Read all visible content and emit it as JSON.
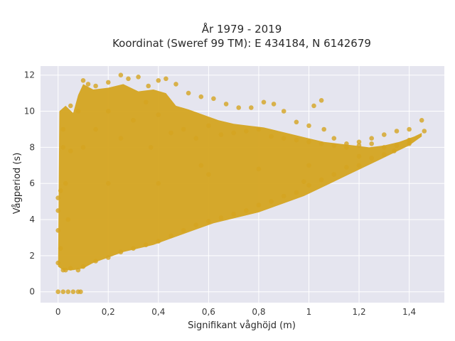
{
  "chart_data": {
    "type": "scatter",
    "title_line1": "År 1979 - 2019",
    "title_line2": "Koordinat (Sweref 99 TM): E 434184, N 6142679",
    "xlabel": "Signifikant våghöjd (m)",
    "ylabel": "Vågperiod (s)",
    "xlim": [
      -0.07,
      1.54
    ],
    "ylim": [
      -0.6,
      12.5
    ],
    "x_ticks": [
      0,
      0.2,
      0.4,
      0.6,
      0.8,
      1.0,
      1.2,
      1.4
    ],
    "x_tick_labels": [
      "0",
      "0,2",
      "0,4",
      "0,6",
      "0,8",
      "1",
      "1,2",
      "1,4"
    ],
    "y_ticks": [
      0,
      2,
      4,
      6,
      8,
      10,
      12
    ],
    "y_tick_labels": [
      "0",
      "2",
      "4",
      "6",
      "8",
      "10",
      "12"
    ],
    "grid": true,
    "marker_color": "#D4A420",
    "background_color": "#E5E5EF",
    "series": [
      {
        "points": [
          [
            0.0,
            0.0
          ],
          [
            0.02,
            0.0
          ],
          [
            0.04,
            0.0
          ],
          [
            0.06,
            0.0
          ],
          [
            0.08,
            0.0
          ],
          [
            0.09,
            0.0
          ],
          [
            0.0,
            1.6
          ],
          [
            0.0,
            3.4
          ],
          [
            0.01,
            5.6
          ],
          [
            0.02,
            9.0
          ],
          [
            0.03,
            1.2
          ],
          [
            0.05,
            7.8
          ],
          [
            0.05,
            10.3
          ],
          [
            0.08,
            10.0
          ],
          [
            0.1,
            11.7
          ],
          [
            0.12,
            11.5
          ],
          [
            0.15,
            11.4
          ],
          [
            0.2,
            11.6
          ],
          [
            0.25,
            12.0
          ],
          [
            0.28,
            11.8
          ],
          [
            0.32,
            11.9
          ],
          [
            0.36,
            11.4
          ],
          [
            0.4,
            11.7
          ],
          [
            0.43,
            11.8
          ],
          [
            0.47,
            11.5
          ],
          [
            0.52,
            11.0
          ],
          [
            0.57,
            10.8
          ],
          [
            0.62,
            10.7
          ],
          [
            0.67,
            10.4
          ],
          [
            0.72,
            10.2
          ],
          [
            0.77,
            10.2
          ],
          [
            0.82,
            10.5
          ],
          [
            0.86,
            10.4
          ],
          [
            0.9,
            10.0
          ],
          [
            0.95,
            9.4
          ],
          [
            1.0,
            9.2
          ],
          [
            1.02,
            10.3
          ],
          [
            1.05,
            10.6
          ],
          [
            1.06,
            9.0
          ],
          [
            1.1,
            8.5
          ],
          [
            1.15,
            8.2
          ],
          [
            1.2,
            8.3
          ],
          [
            1.25,
            8.5
          ],
          [
            1.3,
            8.7
          ],
          [
            1.35,
            8.9
          ],
          [
            1.4,
            9.0
          ],
          [
            1.45,
            9.5
          ],
          [
            1.46,
            8.9
          ],
          [
            1.4,
            8.2
          ],
          [
            1.3,
            7.6
          ],
          [
            1.25,
            7.4
          ],
          [
            1.2,
            7.0
          ],
          [
            1.15,
            6.9
          ],
          [
            1.1,
            6.5
          ],
          [
            1.05,
            6.2
          ],
          [
            1.0,
            5.9
          ],
          [
            0.95,
            5.5
          ],
          [
            0.98,
            6.1
          ],
          [
            0.9,
            5.3
          ],
          [
            0.85,
            5.0
          ],
          [
            0.8,
            4.8
          ],
          [
            0.75,
            4.5
          ],
          [
            0.7,
            4.3
          ],
          [
            0.65,
            4.1
          ],
          [
            0.6,
            3.9
          ],
          [
            0.55,
            3.7
          ],
          [
            0.5,
            3.4
          ],
          [
            0.45,
            3.1
          ],
          [
            0.4,
            2.8
          ],
          [
            0.35,
            2.6
          ],
          [
            0.3,
            2.4
          ],
          [
            0.25,
            2.2
          ],
          [
            0.2,
            1.9
          ],
          [
            0.15,
            1.7
          ],
          [
            0.1,
            1.4
          ],
          [
            0.08,
            1.2
          ],
          [
            0.05,
            1.3
          ],
          [
            0.02,
            1.2
          ],
          [
            0.0,
            5.2
          ],
          [
            0.0,
            4.5
          ],
          [
            0.01,
            2.4
          ],
          [
            0.02,
            8.0
          ],
          [
            0.03,
            6.0
          ],
          [
            0.04,
            4.0
          ],
          [
            0.1,
            8.0
          ],
          [
            0.15,
            9.0
          ],
          [
            0.2,
            10.0
          ],
          [
            0.25,
            8.5
          ],
          [
            0.3,
            9.5
          ],
          [
            0.35,
            10.5
          ],
          [
            0.4,
            9.8
          ],
          [
            0.45,
            8.8
          ],
          [
            0.5,
            9.0
          ],
          [
            0.55,
            8.5
          ],
          [
            0.6,
            9.2
          ],
          [
            0.65,
            8.7
          ],
          [
            0.7,
            8.8
          ],
          [
            0.75,
            8.9
          ],
          [
            0.8,
            9.0
          ],
          [
            0.85,
            8.6
          ],
          [
            0.9,
            8.5
          ],
          [
            0.95,
            8.4
          ],
          [
            1.0,
            8.3
          ],
          [
            1.05,
            8.2
          ],
          [
            1.1,
            8.1
          ],
          [
            1.15,
            8.0
          ],
          [
            1.2,
            8.1
          ],
          [
            1.25,
            8.2
          ],
          [
            1.3,
            8.0
          ],
          [
            1.35,
            8.1
          ],
          [
            1.4,
            8.4
          ],
          [
            0.2,
            6.0
          ],
          [
            0.4,
            6.0
          ],
          [
            0.6,
            6.5
          ],
          [
            0.8,
            6.8
          ],
          [
            1.0,
            7.0
          ],
          [
            1.2,
            7.5
          ],
          [
            1.34,
            7.8
          ],
          [
            0.37,
            8.0
          ],
          [
            0.57,
            7.0
          ]
        ]
      }
    ]
  }
}
